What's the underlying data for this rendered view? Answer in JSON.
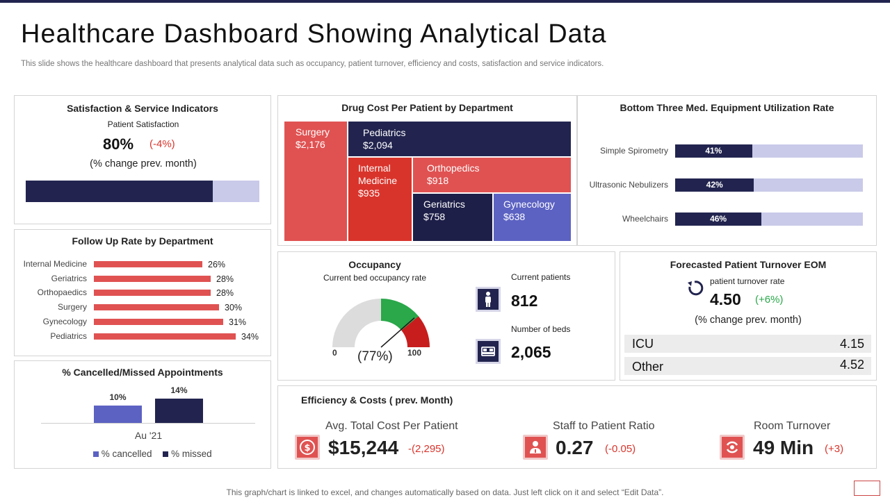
{
  "header": {
    "title": "Healthcare Dashboard Showing Analytical Data",
    "subtitle": "This slide shows the healthcare dashboard that presents analytical data such as occupancy, patient turnover, efficiency and costs, satisfaction and service indicators."
  },
  "satisfaction": {
    "title": "Satisfaction & Service Indicators",
    "subtitle": "Patient Satisfaction",
    "value": "80%",
    "change": "(-4%)",
    "note": "(% change prev. month)",
    "fill_fraction": 0.8,
    "colors": {
      "fill": "#22244f",
      "track": "#c9cae9",
      "negative": "#d9342b"
    }
  },
  "drug_cost": {
    "title": "Drug Cost Per Patient by Department",
    "cells": [
      {
        "name": "Surgery",
        "value": "$2,176",
        "color": "#e05252"
      },
      {
        "name": "Pediatrics",
        "value": "$2,094",
        "color": "#22244f"
      },
      {
        "name": "Internal Medicine",
        "value": "$935",
        "color": "#d9342b"
      },
      {
        "name": "Orthopedics",
        "value": "$918",
        "color": "#e05252"
      },
      {
        "name": "Geriatrics",
        "value": "$758",
        "color": "#1e1f48"
      },
      {
        "name": "Gynecology",
        "value": "$638",
        "color": "#5c62c2"
      }
    ],
    "cells_wrapped": {
      "internal_medicine_line1": "Internal",
      "internal_medicine_line2": "Medicine"
    }
  },
  "equipment": {
    "title": "Bottom Three Med. Equipment Utilization Rate",
    "items": [
      {
        "label": "Simple Spirometry",
        "value": 41,
        "text": "41%"
      },
      {
        "label": "Ultrasonic Nebulizers",
        "value": 42,
        "text": "42%"
      },
      {
        "label": "Wheelchairs",
        "value": 46,
        "text": "46%"
      }
    ],
    "colors": {
      "fill": "#22244f",
      "track": "#c9cae9"
    }
  },
  "follow_up": {
    "title": "Follow Up Rate by Department",
    "items": [
      {
        "label": "Internal Medicine",
        "value": 26,
        "text": "26%"
      },
      {
        "label": "Geriatrics",
        "value": 28,
        "text": "28%"
      },
      {
        "label": "Orthopaedics",
        "value": 28,
        "text": "28%"
      },
      {
        "label": "Surgery",
        "value": 30,
        "text": "30%"
      },
      {
        "label": "Gynecology",
        "value": 31,
        "text": "31%"
      },
      {
        "label": "Pediatrics",
        "value": 34,
        "text": "34%"
      }
    ],
    "color": "#e05252"
  },
  "cancelled": {
    "title": "% Cancelled/Missed Appointments",
    "category": "Au '21",
    "series": [
      {
        "name": "% cancelled",
        "value": 10,
        "text": "10%",
        "color": "#5c62c2"
      },
      {
        "name": "% missed",
        "value": 14,
        "text": "14%",
        "color": "#22244f"
      }
    ]
  },
  "occupancy": {
    "title": "Occupancy",
    "subtitle": "Current bed occupancy rate",
    "gauge_value": 77,
    "gauge_text": "(77%)",
    "min": "0",
    "max": "100",
    "current_patients_label": "Current patients",
    "current_patients": "812",
    "beds_label": "Number of beds",
    "beds": "2,065",
    "colors": {
      "track": "#dcdcdc",
      "green": "#2aa84a",
      "red": "#c81d1d",
      "navy": "#22244f"
    }
  },
  "turnover": {
    "title": "Forecasted Patient Turnover EOM",
    "label": "patient turnover rate",
    "value": "4.50",
    "change": "(+6%)",
    "note": "(% change prev. month)",
    "rows": [
      {
        "name": "ICU",
        "value": "4.15"
      },
      {
        "name": "Other",
        "value": "4.52"
      }
    ],
    "colors": {
      "positive": "#2aa84a",
      "row_bg": "#ececec"
    }
  },
  "efficiency": {
    "title": "Efficiency & Costs ( prev. Month)",
    "metrics": [
      {
        "label": "Avg. Total Cost Per Patient",
        "value": "$15,244",
        "change": "-(2,295)",
        "icon": "dollar-icon"
      },
      {
        "label": "Staff to Patient Ratio",
        "value": "0.27",
        "change": "(-0.05)",
        "icon": "doctor-icon"
      },
      {
        "label": "Room Turnover",
        "value": "49 Min",
        "change": "(+3)",
        "icon": "turnover-icon"
      }
    ],
    "colors": {
      "icon": "#e05252",
      "negative": "#d9342b"
    }
  },
  "footer": {
    "text": "This graph/chart is linked to excel, and changes automatically based on data. Just left click on it and select “Edit Data”."
  }
}
